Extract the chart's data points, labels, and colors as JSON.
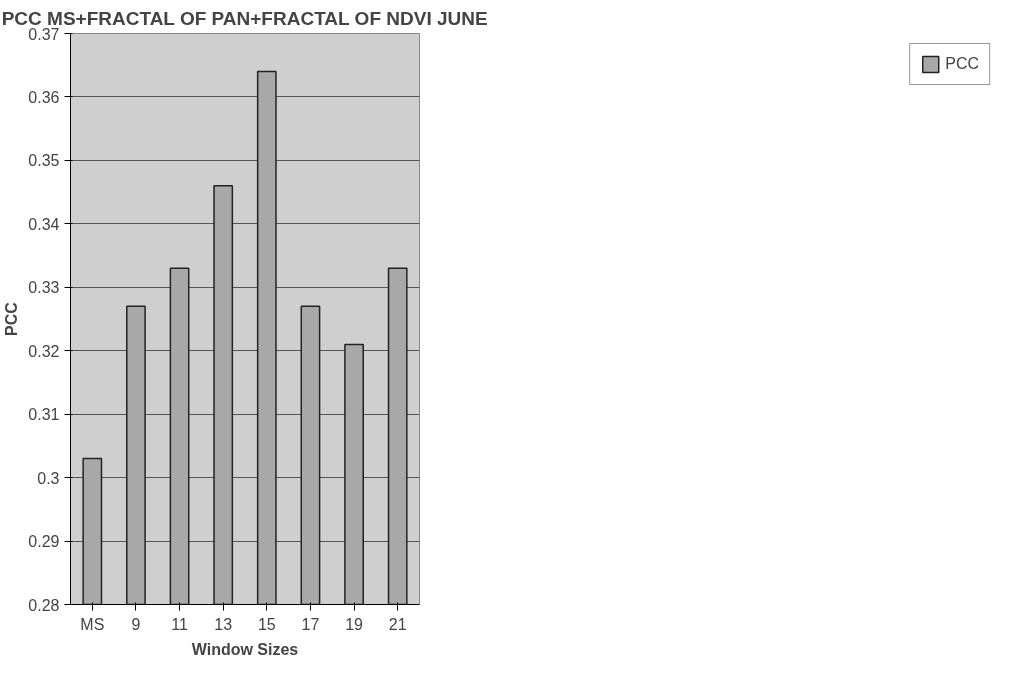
{
  "chart_data": {
    "type": "bar",
    "title": "PCC MS+FRACTAL OF PAN+FRACTAL OF NDVI JUNE",
    "xlabel": "Window Sizes",
    "ylabel": "PCC",
    "categories": [
      "MS",
      "9",
      "11",
      "13",
      "15",
      "17",
      "19",
      "21"
    ],
    "series": [
      {
        "name": "PCC",
        "color": "#a8a8a8",
        "values": [
          0.303,
          0.327,
          0.333,
          0.346,
          0.364,
          0.327,
          0.321,
          0.333
        ]
      }
    ],
    "ylim": [
      0.28,
      0.37
    ],
    "yticks": [
      0.28,
      0.29,
      0.3,
      0.31,
      0.32,
      0.33,
      0.34,
      0.35,
      0.36,
      0.37
    ],
    "grid": "y",
    "legend": "right"
  }
}
